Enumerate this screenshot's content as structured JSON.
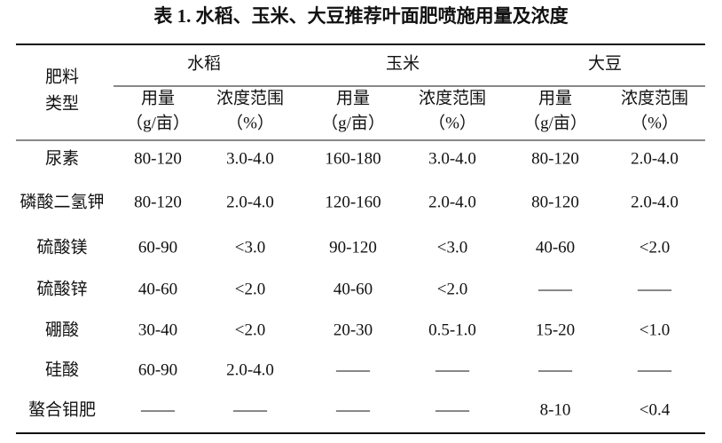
{
  "title": "表 1.  水稻、玉米、大豆推荐叶面肥喷施用量及浓度",
  "header": {
    "first_col": [
      "肥料",
      "类型"
    ],
    "groups": [
      "水稻",
      "玉米",
      "大豆"
    ],
    "sub_columns": [
      [
        "用量",
        "（g/亩）"
      ],
      [
        "浓度范围",
        "（%）"
      ]
    ]
  },
  "table": {
    "rows": [
      [
        "尿素",
        "80-120",
        "3.0-4.0",
        "160-180",
        "3.0-4.0",
        "80-120",
        "2.0-4.0"
      ],
      [
        "磷酸二氢钾",
        "80-120",
        "2.0-4.0",
        "120-160",
        "2.0-4.0",
        "80-120",
        "2.0-4.0"
      ],
      [
        "硫酸镁",
        "60-90",
        "<3.0",
        "90-120",
        "<3.0",
        "40-60",
        "<2.0"
      ],
      [
        "硫酸锌",
        "40-60",
        "<2.0",
        "40-60",
        "<2.0",
        "——",
        "——"
      ],
      [
        "硼酸",
        "30-40",
        "<2.0",
        "20-30",
        "0.5-1.0",
        "15-20",
        "<1.0"
      ],
      [
        "硅酸",
        "60-90",
        "2.0-4.0",
        "——",
        "——",
        "——",
        "——"
      ],
      [
        "螯合钼肥",
        "——",
        "——",
        "——",
        "——",
        "8-10",
        "<0.4"
      ]
    ]
  }
}
